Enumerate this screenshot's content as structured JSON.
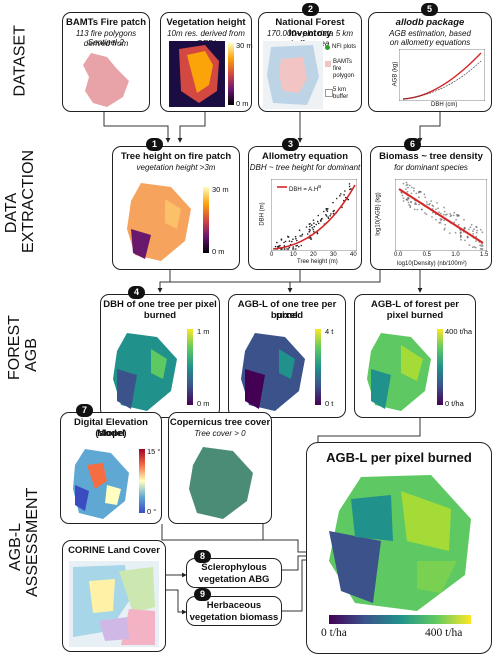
{
  "row_labels": {
    "dataset": "DATASET",
    "extraction_1": "DATA",
    "extraction_2": "EXTRACTION",
    "forest_1": "FOREST",
    "forest_2": "AGB",
    "assess_1": "AGB-L",
    "assess_2": "ASSESSMENT"
  },
  "boxes": {
    "bamts": {
      "title": "BAMTs Fire patch",
      "sub1": "113 fire polygons derived from",
      "sub2": "Sentinel-2"
    },
    "veg": {
      "title": "Vegetation height",
      "sub1": "10m res. derived from GEDI",
      "scale_top": "30 m",
      "scale_bot": "0 m"
    },
    "nfi": {
      "badge": "2",
      "title": "National Forest Inventory",
      "sub1": "170.000+ plot data 5 km buffer area",
      "legend_plots": "NFI plots",
      "legend_bamts_1": "BAMTs",
      "legend_bamts_2": "fire",
      "legend_bamts_3": "polygon",
      "legend_buffer_1": "5 km",
      "legend_buffer_2": "buffer"
    },
    "allodb": {
      "badge": "5",
      "title": "allodb package",
      "sub1": "AGB estimation, based",
      "sub2": "on allometry equations",
      "xlabel": "DBH (cm)",
      "ylabel": "AGB (kg)"
    },
    "tree_height": {
      "badge": "1",
      "title": "Tree height on fire patch",
      "sub1": "vegetation height >3m",
      "scale_top": "30 m",
      "scale_bot": "0 m"
    },
    "allometry": {
      "badge": "3",
      "title": "Allometry equation",
      "sub1": "DBH ~ tree height for dominant",
      "legend": "DBH = A.H",
      "legend_exp": "B",
      "xlabel": "Tree height (m)",
      "ylabel": "DBH (m)"
    },
    "biomass": {
      "badge": "6",
      "title": "Biomass ~ tree density",
      "sub1": "for dominant species",
      "xlabel": "log10(Density) (nb/100m²)",
      "ylabel": "log10(AGB) (kg)"
    },
    "dbh": {
      "badge": "4",
      "title": "DBH of one tree per pixel",
      "title2": "burned",
      "scale_top": "1 m",
      "scale_bot": "0 m"
    },
    "agbl_one": {
      "title": "AGB-L of one tree per pixel",
      "title2": "burned",
      "scale_top": "4 t",
      "scale_bot": "0 t"
    },
    "agbl_forest": {
      "title": "AGB-L of forest per",
      "title2": "pixel burned",
      "scale_top": "400 t/ha",
      "scale_bot": "0 t/ha"
    },
    "dem": {
      "badge": "7",
      "title": "Digital Elevation Model",
      "title2": "(slope)",
      "scale_top": "15 °",
      "scale_bot": "0 °"
    },
    "copernicus": {
      "title": "Copernicus tree cover",
      "sub1": "Tree cover > 0"
    },
    "corine": {
      "title": "CORINE Land Cover"
    },
    "sclero": {
      "badge": "8",
      "title": "Sclerophylous",
      "title2": "vegetation ABG"
    },
    "herb": {
      "badge": "9",
      "title": "Herbaceous",
      "title2": "vegetation biomass"
    },
    "final": {
      "title": "AGB-L per pixel burned",
      "scale_left": "0 t/ha",
      "scale_right": "400 t/ha"
    }
  },
  "chart_data": [
    {
      "type": "scatter",
      "title": "Allometry equation",
      "xlabel": "Tree height (m)",
      "ylabel": "DBH (m)",
      "x_ticks": [
        "0",
        "10",
        "20",
        "30",
        "40"
      ],
      "series": [
        {
          "name": "DBH = A.H^B"
        }
      ]
    },
    {
      "type": "scatter",
      "title": "Biomass ~ tree density",
      "xlabel": "log10(Density) (nb/100m²)",
      "ylabel": "log10(AGB) (kg)",
      "x_ticks": [
        "0.0",
        "0.5",
        "1.0",
        "1.5"
      ]
    }
  ],
  "colors": {
    "fire_pink": "#e8a3a8",
    "viridis_low": "#440154",
    "viridis_high": "#fde725",
    "magma_low": "#000004",
    "magma_high": "#fcfdbf",
    "tree_cover_green": "#4a8c76",
    "nfi_pink": "#f2c4c4",
    "nfi_blue": "#bcd4e6",
    "fit_red": "#d62728"
  }
}
